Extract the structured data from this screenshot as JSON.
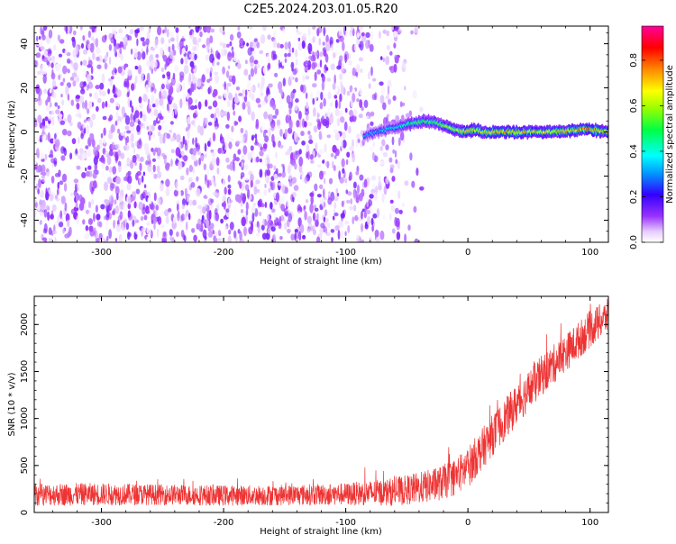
{
  "figure": {
    "title": "C2E5.2024.203.01.05.R20"
  },
  "chart_data": [
    {
      "type": "heatmap",
      "xlabel": "Height of straight line (km)",
      "ylabel": "Frequency (Hz)",
      "xlim": [
        -355,
        115
      ],
      "ylim": [
        -50,
        48
      ],
      "xticks": [
        -300,
        -200,
        -100,
        0,
        100
      ],
      "yticks": [
        -40,
        -20,
        0,
        20,
        40
      ],
      "grid": false,
      "colorbar": {
        "label": "Normalized spectral amplitude",
        "range": [
          0,
          0.95
        ],
        "ticks": [
          0.0,
          0.2,
          0.4,
          0.6,
          0.8
        ],
        "colormap": "rainbow (white-purple-blue-cyan-green-yellow-red-magenta)"
      },
      "description_points": {
        "noise_region_x": [
          -355,
          -60
        ],
        "noise_amplitude": 0.15,
        "signal_track": {
          "x": [
            -85,
            -75,
            -60,
            -45,
            -35,
            -25,
            -15,
            -5,
            5,
            15,
            30,
            50,
            70,
            90,
            100,
            115
          ],
          "freq": [
            -2,
            0,
            2,
            4,
            5,
            4,
            2,
            0,
            1,
            0,
            0,
            0,
            0,
            1,
            1,
            0
          ],
          "amplitude": [
            0.35,
            0.4,
            0.45,
            0.55,
            0.6,
            0.6,
            0.7,
            0.75,
            0.8,
            0.8,
            0.85,
            0.8,
            0.8,
            0.85,
            0.9,
            0.8
          ]
        }
      }
    },
    {
      "type": "line",
      "xlabel": "Height of straight line (km)",
      "ylabel": "SNR (10 * v/v)",
      "xlim": [
        -355,
        115
      ],
      "ylim": [
        0,
        2300
      ],
      "xticks": [
        -300,
        -200,
        -100,
        0,
        100
      ],
      "yticks": [
        0,
        500,
        1000,
        1500,
        2000
      ],
      "grid": false,
      "series": [
        {
          "color": "#ee3333",
          "x": [
            -355,
            -300,
            -250,
            -200,
            -150,
            -100,
            -60,
            -40,
            -25,
            -10,
            0,
            10,
            20,
            40,
            60,
            80,
            100,
            115
          ],
          "y_mean": [
            190,
            195,
            190,
            180,
            185,
            195,
            220,
            260,
            300,
            380,
            480,
            650,
            820,
            1150,
            1450,
            1700,
            1950,
            2100
          ],
          "y_spread": [
            120,
            120,
            110,
            110,
            110,
            120,
            150,
            170,
            180,
            200,
            220,
            220,
            220,
            220,
            220,
            200,
            200,
            180
          ]
        }
      ]
    }
  ]
}
